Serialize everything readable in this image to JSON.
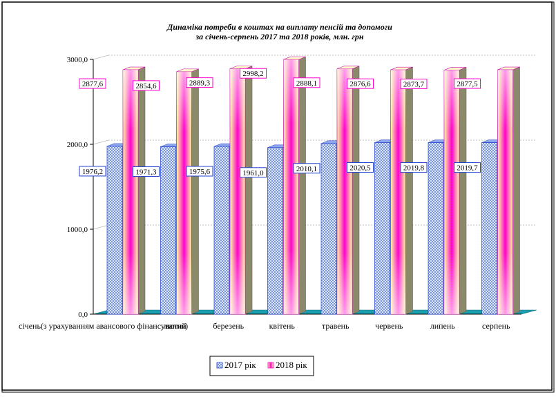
{
  "chart_data": {
    "type": "bar",
    "title": "Динаміка потреби в коштах на виплату пенсій та допомоги",
    "subtitle": "за січень-серпень 2017 та 2018 років, млн. грн",
    "categories": [
      "січень(з урахуванням авансового фінансування)",
      "лютий",
      "березень",
      "квітень",
      "травень",
      "червень",
      "липень",
      "серпень"
    ],
    "category_labels_printed": [
      "січень(з урахуванням авансового фінансування)",
      "лютий",
      "березень",
      "квітень",
      "травень",
      "червень",
      "липень",
      "серпень"
    ],
    "series": [
      {
        "name": "2017 рік",
        "values": [
          1976.2,
          1971.3,
          1975.6,
          1961.0,
          2010.1,
          2020.5,
          2019.8,
          2019.7
        ],
        "labels": [
          "1976,2",
          "1971,3",
          "1975,6",
          "1961,0",
          "2010,1",
          "2020,5",
          "2019,8",
          "2019,7"
        ],
        "color": "#5b7fe0",
        "label_border": "#1f3fd0"
      },
      {
        "name": "2018 рік",
        "values": [
          2877.6,
          2854.6,
          2889.3,
          2998.2,
          2888.1,
          2876.6,
          2873.7,
          2877.5
        ],
        "labels": [
          "2877,6",
          "2854,6",
          "2889,3",
          "2998,2",
          "2888,1",
          "2876,6",
          "2873,7",
          "2877,5"
        ],
        "color": "#ffff99",
        "accent": "#ff00cc",
        "label_border": "#ff00cc"
      }
    ],
    "ylim": [
      0,
      3000
    ],
    "yticks": [
      0,
      1000,
      2000,
      3000
    ],
    "ytick_labels": [
      "0,0",
      "1000,0",
      "2000,0",
      "3000,0"
    ],
    "grid": true,
    "legend_position": "bottom",
    "floor_color": "#1aa0b0"
  }
}
